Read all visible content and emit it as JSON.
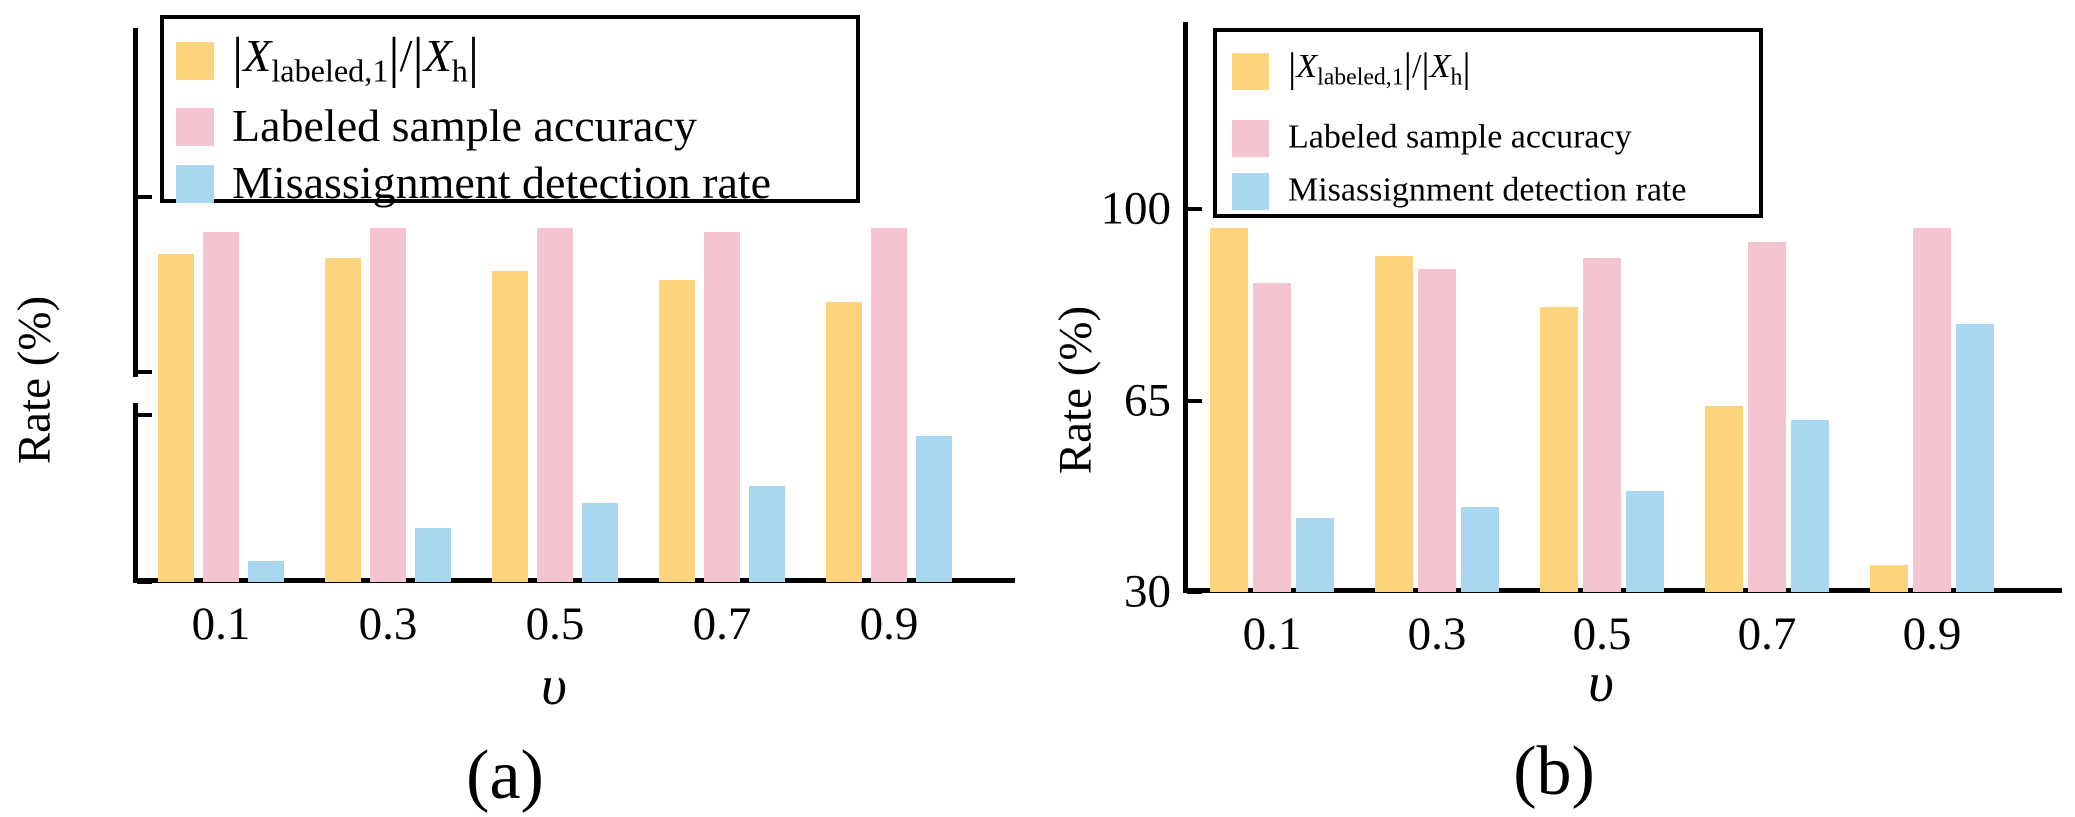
{
  "figure": {
    "background": "#ffffff",
    "axis_color": "#000000",
    "font_color": "#000000"
  },
  "chart_data": [
    {
      "id": "a",
      "type": "bar",
      "caption": "(a)",
      "xlabel": "υ",
      "ylabel": "Rate (%)",
      "categories": [
        "0.1",
        "0.3",
        "0.5",
        "0.7",
        "0.9"
      ],
      "y_ticks": [
        100,
        80,
        60,
        40
      ],
      "ylim": [
        40,
        100
      ],
      "axis_break_between": [
        60,
        80
      ],
      "grid": false,
      "legend_position": "upper left",
      "series": [
        {
          "name": "|X_labeled,1|/|X_h|",
          "color": "#FDD37E",
          "values": [
            93.5,
            93,
            91.5,
            90.5,
            88
          ],
          "label_parts": [
            {
              "t": "bar",
              "s": "|"
            },
            {
              "t": "i",
              "s": "X"
            },
            {
              "t": "sub",
              "s": "labeled,1"
            },
            {
              "t": "bar",
              "s": "|"
            },
            {
              "t": "n",
              "s": "/"
            },
            {
              "t": "bar",
              "s": "|"
            },
            {
              "t": "i",
              "s": "X"
            },
            {
              "t": "sub",
              "s": "h"
            },
            {
              "t": "bar",
              "s": "|"
            }
          ]
        },
        {
          "name": "Labeled sample accuracy",
          "color": "#F6C4D1",
          "values": [
            96,
            96.5,
            96.5,
            96,
            96.5
          ],
          "label_parts": [
            {
              "t": "n",
              "s": "Labeled sample accuracy"
            }
          ]
        },
        {
          "name": "Misassignment detection rate",
          "color": "#A9D7F0",
          "values": [
            42.5,
            46.5,
            49.5,
            51.5,
            57.5
          ],
          "label_parts": [
            {
              "t": "n",
              "s": "Misassignment detection rate"
            }
          ]
        }
      ]
    },
    {
      "id": "b",
      "type": "bar",
      "caption": "(b)",
      "xlabel": "υ",
      "ylabel": "Rate (%)",
      "categories": [
        "0.1",
        "0.3",
        "0.5",
        "0.7",
        "0.9"
      ],
      "y_ticks": [
        100,
        65,
        30
      ],
      "ylim": [
        30,
        100
      ],
      "axis_break_between": null,
      "grid": false,
      "legend_position": "upper left",
      "series": [
        {
          "name": "|X_labeled,1|/|X_h|",
          "color": "#FDD37E",
          "values": [
            96.5,
            91.5,
            82,
            64,
            35
          ],
          "label_parts": [
            {
              "t": "bar",
              "s": "|"
            },
            {
              "t": "i",
              "s": "X"
            },
            {
              "t": "sub",
              "s": "labeled,1"
            },
            {
              "t": "bar",
              "s": "|"
            },
            {
              "t": "n",
              "s": "/"
            },
            {
              "t": "bar",
              "s": "|"
            },
            {
              "t": "i",
              "s": "X"
            },
            {
              "t": "sub",
              "s": "h"
            },
            {
              "t": "bar",
              "s": "|"
            }
          ]
        },
        {
          "name": "Labeled sample accuracy",
          "color": "#F6C4D1",
          "values": [
            86.5,
            89,
            91,
            94,
            96.5
          ],
          "label_parts": [
            {
              "t": "n",
              "s": "Labeled sample accuracy"
            }
          ]
        },
        {
          "name": "Misassignment detection rate",
          "color": "#A9D7F0",
          "values": [
            43.5,
            45.5,
            48.5,
            61.5,
            79
          ],
          "label_parts": [
            {
              "t": "n",
              "s": "Misassignment detection rate"
            }
          ]
        }
      ]
    }
  ]
}
